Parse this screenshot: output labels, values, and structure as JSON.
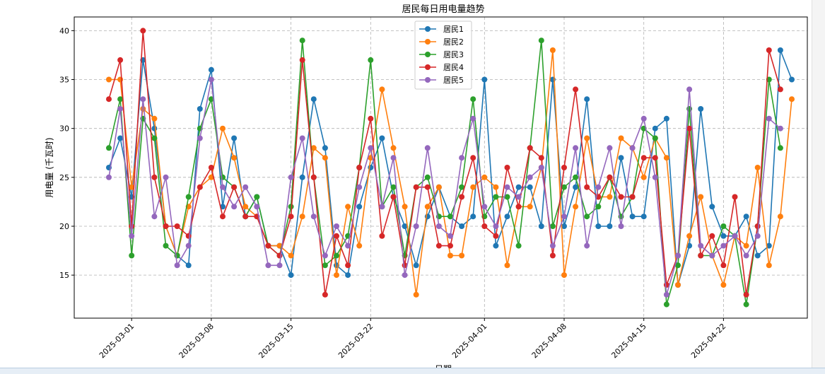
{
  "chart_data": {
    "type": "line",
    "title": "居民每日用电量趋势",
    "xlabel": "日期",
    "ylabel": "用电量 (千瓦时)",
    "ylim": [
      10.6,
      41.4
    ],
    "yticks": [
      15,
      20,
      25,
      30,
      35,
      40
    ],
    "x_start": "2025-02-27",
    "xticks": [
      "2025-03-01",
      "2025-03-08",
      "2025-03-15",
      "2025-03-22",
      "2025-04-01",
      "2025-04-08",
      "2025-04-15",
      "2025-04-22"
    ],
    "grid": true,
    "legend_position": "upper center",
    "series": [
      {
        "name": "居民1",
        "color": "#1f77b4",
        "values": [
          26,
          29,
          23,
          37,
          30,
          20,
          17,
          16,
          32,
          36,
          22,
          29,
          21,
          23,
          18,
          18,
          15,
          25,
          33,
          28,
          16,
          15,
          22,
          26,
          29,
          23,
          20,
          16,
          21,
          24,
          21,
          20,
          21,
          35,
          18,
          21,
          24,
          24,
          20,
          35,
          20,
          24,
          33,
          20,
          20,
          27,
          21,
          21,
          30,
          31,
          14,
          18,
          32,
          22,
          19,
          19,
          21,
          17,
          18,
          38,
          35
        ]
      },
      {
        "name": "居民2",
        "color": "#ff7f0e",
        "values": [
          35,
          35,
          24,
          32,
          31,
          20,
          17,
          22,
          24,
          25,
          30,
          27,
          22,
          21,
          18,
          18,
          17,
          21,
          28,
          27,
          15,
          22,
          18,
          27,
          34,
          28,
          22,
          13,
          22,
          24,
          17,
          17,
          24,
          25,
          24,
          16,
          22,
          22,
          26,
          38,
          15,
          22,
          29,
          23,
          23,
          29,
          28,
          25,
          29,
          27,
          14,
          19,
          23,
          17,
          14,
          19,
          18,
          26,
          16,
          21,
          33
        ]
      },
      {
        "name": "居民3",
        "color": "#2ca02c",
        "values": [
          28,
          33,
          17,
          31,
          29,
          18,
          17,
          23,
          30,
          33,
          25,
          24,
          21,
          23,
          18,
          17,
          22,
          39,
          25,
          16,
          17,
          19,
          26,
          37,
          22,
          24,
          17,
          24,
          25,
          21,
          21,
          24,
          33,
          21,
          23,
          23,
          18,
          28,
          39,
          20,
          24,
          25,
          21,
          22,
          25,
          21,
          23,
          30,
          29,
          12,
          16,
          32,
          17,
          17,
          20,
          19,
          12,
          20,
          35,
          28
        ]
      },
      {
        "name": "居民4",
        "color": "#d62728",
        "values": [
          33,
          37,
          20,
          40,
          25,
          20,
          20,
          19,
          24,
          26,
          21,
          24,
          21,
          21,
          18,
          17,
          21,
          37,
          25,
          13,
          19,
          16,
          26,
          31,
          19,
          23,
          16,
          24,
          24,
          18,
          18,
          23,
          27,
          20,
          19,
          26,
          22,
          28,
          27,
          17,
          26,
          34,
          24,
          23,
          25,
          23,
          23,
          27,
          27,
          14,
          17,
          30,
          17,
          19,
          16,
          23,
          13,
          20,
          38,
          34
        ]
      },
      {
        "name": "居民5",
        "color": "#9467bd",
        "values": [
          25,
          32,
          19,
          33,
          21,
          25,
          16,
          18,
          29,
          35,
          24,
          22,
          24,
          22,
          16,
          16,
          25,
          29,
          21,
          17,
          20,
          18,
          24,
          28,
          22,
          27,
          15,
          20,
          28,
          20,
          19,
          27,
          31,
          22,
          20,
          24,
          23,
          25,
          26,
          18,
          21,
          28,
          18,
          24,
          28,
          20,
          28,
          31,
          25,
          13,
          17,
          34,
          18,
          17,
          18,
          19,
          17,
          19,
          31,
          30
        ]
      }
    ]
  }
}
